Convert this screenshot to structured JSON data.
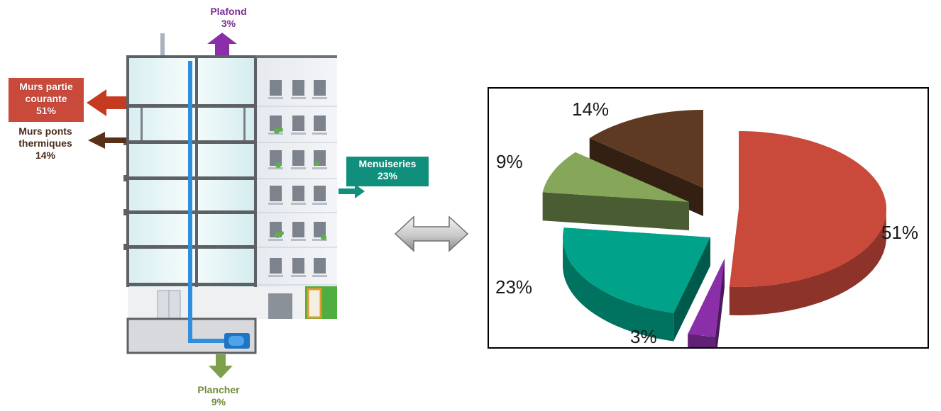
{
  "building": {
    "labels": {
      "walls_main": [
        "Murs partie",
        "courante",
        "51%"
      ],
      "thermal_bridges": [
        "Murs ponts",
        "thermiques",
        "14%"
      ],
      "ceiling": [
        "Plafond",
        "3%"
      ],
      "joinery": [
        "Menuiseries",
        "23%"
      ],
      "floor": [
        "Plancher",
        "9%"
      ]
    },
    "colors": {
      "walls_main": "#c9493b",
      "thermal_bridges": "#5a3420",
      "ceiling": "#8a2fa8",
      "joinery": "#0f8f7c",
      "floor": "#7ea04a",
      "pipe": "#2f8ede"
    }
  },
  "connector": {
    "icon": "double-arrow-icon"
  },
  "chart_data": {
    "type": "pie",
    "style": "3d exploded",
    "slices": [
      {
        "value": 51,
        "label": "51%",
        "color": "#c9493b"
      },
      {
        "value": 3,
        "label": "3%",
        "color": "#8a2fa8"
      },
      {
        "value": 23,
        "label": "23%",
        "color": "#00a389"
      },
      {
        "value": 9,
        "label": "9%",
        "color": "#86a75a"
      },
      {
        "value": 14,
        "label": "14%",
        "color": "#5e3a22"
      }
    ],
    "legend": "none"
  }
}
